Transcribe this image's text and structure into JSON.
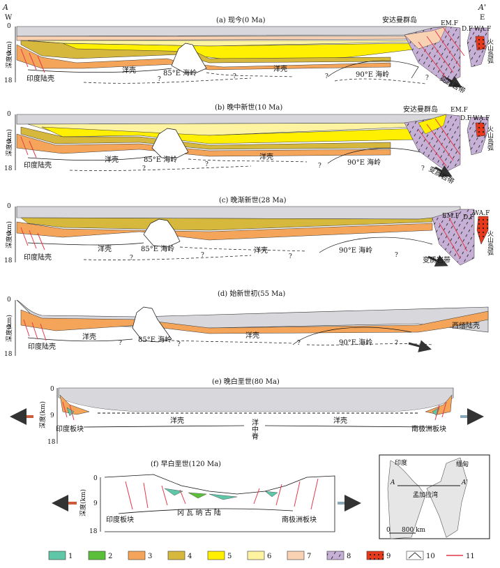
{
  "section_endpoints": {
    "left": "A",
    "right": "A'",
    "west": "W",
    "east": "E"
  },
  "axis": {
    "label": "深度(km)",
    "ticks": [
      "0",
      "9",
      "18"
    ]
  },
  "panels": [
    {
      "id": "a",
      "title": "(a)   现今(0 Ma)",
      "labels": {
        "continent": "印度陆壳",
        "crust_left": "洋壳",
        "ridge85": "85°E 海岭",
        "crust_mid": "洋壳",
        "ridge90": "90°E 海岭",
        "andaman": "安达曼群岛",
        "emf": "EM.F",
        "df": "D.F",
        "waf": "WA.F",
        "volc": "火山岛弧",
        "meta": "变质岩带"
      }
    },
    {
      "id": "b",
      "title": "(b)   晚中新世(10 Ma)",
      "labels": {
        "continent": "印度陆壳",
        "crust_left": "洋壳",
        "ridge85": "85°E 海岭",
        "crust_mid": "洋壳",
        "ridge90": "90°E 海岭",
        "andaman": "安达曼群岛",
        "emf": "EM.F",
        "df": "D.F",
        "waf": "WA.F",
        "volc": "火山岛弧",
        "meta": "变质岩带"
      }
    },
    {
      "id": "c",
      "title": "(c)   晚渐新世(28 Ma)",
      "labels": {
        "continent": "印度陆壳",
        "crust_left": "洋壳",
        "ridge85": "85°E 海岭",
        "crust_mid": "洋壳",
        "ridge90": "90°E 海岭",
        "emf": "EM.F",
        "df": "D.F",
        "waf": "WA.F",
        "volc": "火山岛弧",
        "meta": "变质岩带"
      }
    },
    {
      "id": "d",
      "title": "(d)   始新世初(55 Ma)",
      "labels": {
        "continent": "印度陆壳",
        "crust_left": "洋壳",
        "ridge85": "85°E 海岭",
        "crust_mid": "洋壳",
        "ridge90": "90°E 海岭",
        "west_burma": "西缅陆壳"
      }
    },
    {
      "id": "e",
      "title": "(e)   晚白垩世(80 Ma)",
      "labels": {
        "india_plate": "印度板块",
        "crust_left": "洋壳",
        "mor": "洋中脊",
        "crust_right": "洋壳",
        "antarctic": "南极洲板块"
      }
    },
    {
      "id": "f",
      "title": "(f)   早白垩世(120 Ma)",
      "labels": {
        "india_plate": "印度板块",
        "gondwana": "冈  瓦  纳  古  陆",
        "antarctic": "南极洲板块"
      }
    }
  ],
  "question_mark": "?",
  "inset_map": {
    "india": "印度",
    "burma": "缅甸",
    "bay": "孟加拉湾",
    "a": "A",
    "a_prime": "A'",
    "scale_zero": "0",
    "scale": "800 km"
  },
  "legend": [
    {
      "num": "1",
      "color": "#5fc7a8",
      "pattern": "solid"
    },
    {
      "num": "2",
      "color": "#5bbf3a",
      "pattern": "solid"
    },
    {
      "num": "3",
      "color": "#f5a55a",
      "pattern": "solid"
    },
    {
      "num": "4",
      "color": "#d6b83c",
      "pattern": "solid"
    },
    {
      "num": "5",
      "color": "#ffef00",
      "pattern": "solid"
    },
    {
      "num": "6",
      "color": "#fdf3a0",
      "pattern": "solid"
    },
    {
      "num": "7",
      "color": "#f9d2b4",
      "pattern": "solid"
    },
    {
      "num": "8",
      "color": "#c7b0d6",
      "pattern": "dashes"
    },
    {
      "num": "9",
      "color": "#e53a1d",
      "pattern": "dots"
    },
    {
      "num": "10",
      "color": "#ffffff",
      "pattern": "fault"
    },
    {
      "num": "11",
      "color": "#e4394b",
      "pattern": "line"
    }
  ],
  "colors": {
    "water": "#d8d8dc",
    "orange": "#f5a55a",
    "olive": "#d6b83c",
    "yellow": "#ffef00",
    "paleYellow": "#fdf3a0",
    "peach": "#f9d2b4",
    "fault": "#e4394b",
    "meta": "#c7b0d6",
    "volc": "#e53a1d",
    "teal": "#5fc7a8",
    "green": "#5bbf3a"
  }
}
